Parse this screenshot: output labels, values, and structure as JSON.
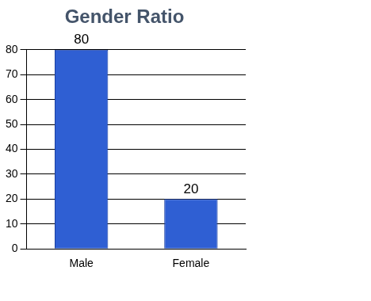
{
  "chart_data": {
    "type": "bar",
    "title": "Gender Ratio",
    "categories": [
      "Male",
      "Female"
    ],
    "values": [
      80,
      20
    ],
    "color": "#2f5fd3",
    "ylim": [
      0,
      80
    ],
    "yticks": [
      0,
      10,
      20,
      30,
      40,
      50,
      60,
      70,
      80
    ],
    "grid": true,
    "data_labels": true
  }
}
